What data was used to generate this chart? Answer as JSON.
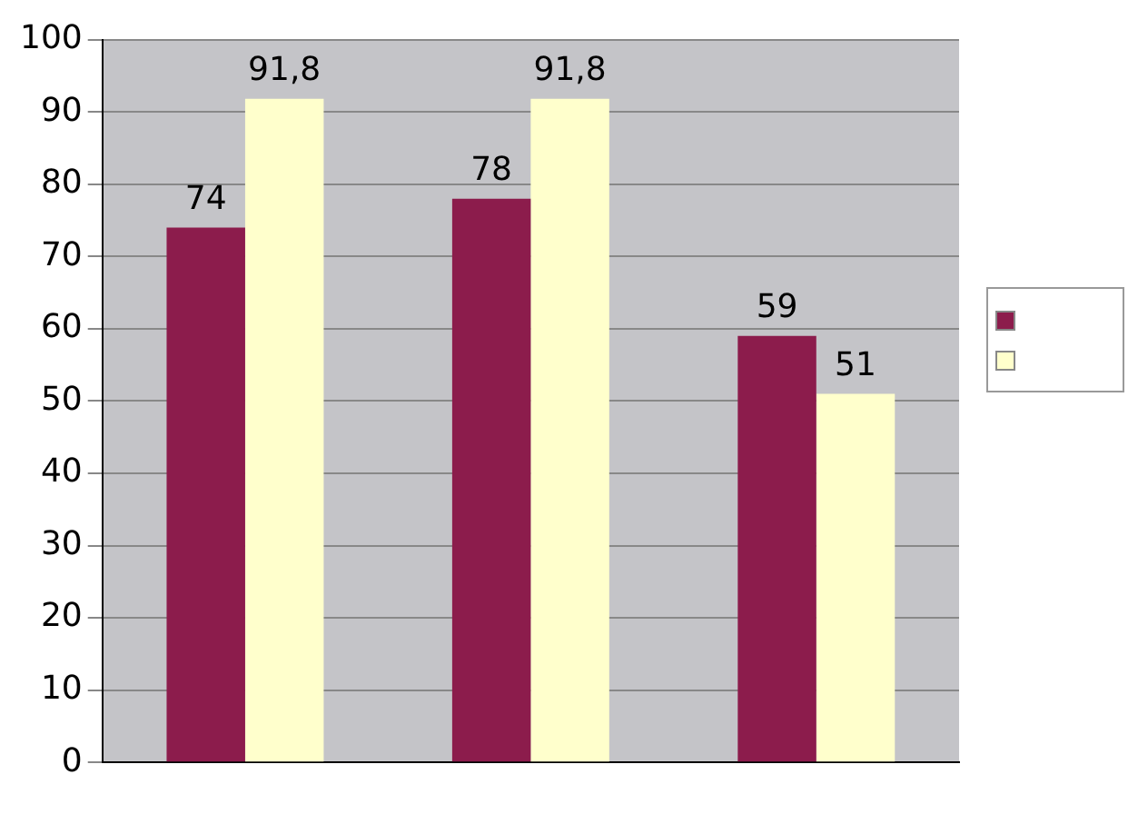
{
  "chart_data": {
    "type": "bar",
    "categories": [
      null,
      null,
      null
    ],
    "series": [
      {
        "color": "#8c1c4c",
        "values": [
          74,
          78,
          59
        ],
        "value_labels": [
          "74",
          "78",
          "59"
        ]
      },
      {
        "color": "#ffffcc",
        "values": [
          91.8,
          91.8,
          51
        ],
        "value_labels": [
          "91,8",
          "91,8",
          "51"
        ]
      }
    ],
    "ylim": [
      0,
      100
    ],
    "yticks": [
      0,
      10,
      20,
      30,
      40,
      50,
      60,
      70,
      80,
      90,
      100
    ],
    "grid": "y"
  }
}
